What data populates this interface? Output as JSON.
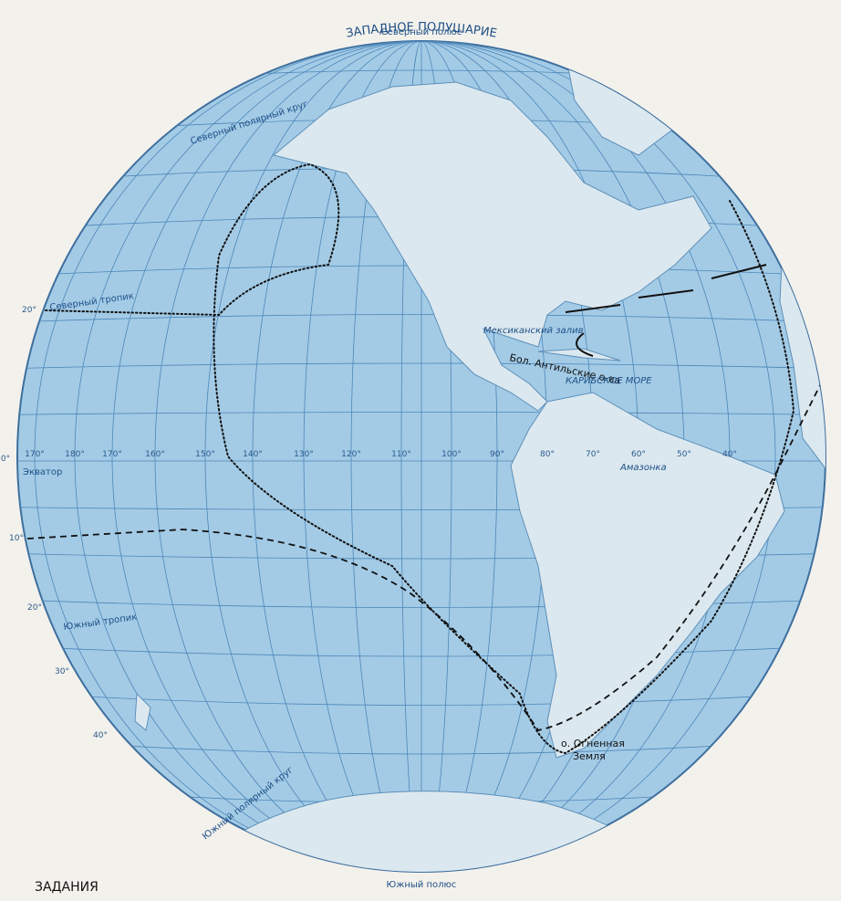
{
  "map": {
    "title": "ЗАПАДНОЕ ПОЛУШАРИЕ",
    "poles": {
      "north": "Северный полюс",
      "south": "Южный полюс"
    },
    "lines": {
      "arctic_circle": "Северный полярный круг",
      "tropic_north": "Северный тропик",
      "equator": "Экватор",
      "tropic_south": "Южный тропик",
      "antarctic_circle": "Южный полярный круг"
    },
    "features": {
      "gulf": "Мексиканский залив",
      "antilles": "Бол. Антильские о-ва",
      "caribbean": "КАРИБСКОЕ МОРЕ",
      "amazon": "Амазонка",
      "tierra_del_fuego_1": "о. Огненная",
      "tierra_del_fuego_2": "Земля"
    },
    "longitudes": [
      "170°",
      "180°",
      "170°",
      "160°",
      "150°",
      "140°",
      "130°",
      "120°",
      "110°",
      "100°",
      "90°",
      "80°",
      "70°",
      "60°",
      "50°",
      "40°"
    ],
    "latitudes": [
      "20°",
      "0°",
      "10°",
      "20°",
      "30°",
      "40°"
    ],
    "tasks_heading": "ЗАДАНИЯ"
  }
}
